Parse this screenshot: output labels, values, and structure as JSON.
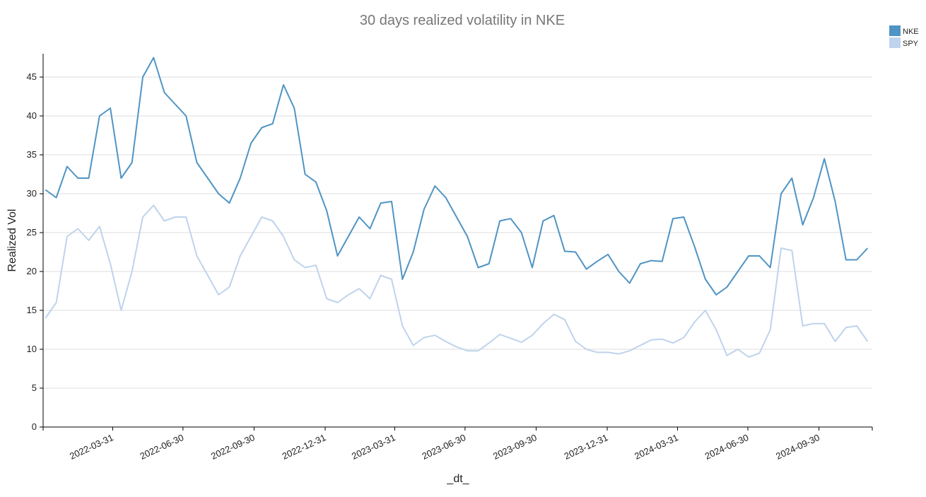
{
  "chart_data": {
    "type": "line",
    "title": "30 days realized volatility in NKE",
    "x_label": "_dt_",
    "y_label": "Realized Vol",
    "x": [
      "2022-01-03",
      "2022-01-17",
      "2022-01-31",
      "2022-02-14",
      "2022-02-28",
      "2022-03-14",
      "2022-03-28",
      "2022-04-11",
      "2022-04-25",
      "2022-05-09",
      "2022-05-23",
      "2022-06-06",
      "2022-06-20",
      "2022-07-04",
      "2022-07-18",
      "2022-08-01",
      "2022-08-15",
      "2022-08-29",
      "2022-09-12",
      "2022-09-26",
      "2022-10-10",
      "2022-10-24",
      "2022-11-07",
      "2022-11-21",
      "2022-12-05",
      "2022-12-19",
      "2023-01-02",
      "2023-01-16",
      "2023-01-30",
      "2023-02-13",
      "2023-02-27",
      "2023-03-13",
      "2023-03-27",
      "2023-04-10",
      "2023-04-24",
      "2023-05-08",
      "2023-05-22",
      "2023-06-05",
      "2023-06-19",
      "2023-07-03",
      "2023-07-17",
      "2023-07-31",
      "2023-08-14",
      "2023-08-28",
      "2023-09-11",
      "2023-09-25",
      "2023-10-09",
      "2023-10-23",
      "2023-11-06",
      "2023-11-20",
      "2023-12-04",
      "2023-12-18",
      "2024-01-01",
      "2024-01-15",
      "2024-01-29",
      "2024-02-12",
      "2024-02-26",
      "2024-03-11",
      "2024-03-25",
      "2024-04-08",
      "2024-04-22",
      "2024-05-06",
      "2024-05-20",
      "2024-06-03",
      "2024-06-17",
      "2024-07-01",
      "2024-07-15",
      "2024-07-29",
      "2024-08-12",
      "2024-08-26",
      "2024-09-09",
      "2024-09-23",
      "2024-10-07",
      "2024-10-21",
      "2024-11-04",
      "2024-11-18",
      "2024-12-02"
    ],
    "series": [
      {
        "name": "NKE",
        "color": "#4f94c4",
        "values": [
          30.5,
          29.5,
          33.5,
          32,
          32,
          40,
          41,
          32,
          34,
          45,
          47.5,
          43,
          41.5,
          40,
          34,
          32,
          30,
          28.8,
          32,
          36.5,
          38.5,
          39,
          44,
          41,
          32.5,
          31.5,
          27.8,
          22,
          24.5,
          27,
          25.5,
          28.8,
          29,
          19,
          22.5,
          28,
          31,
          29.5,
          27,
          24.5,
          20.5,
          21,
          26.5,
          26.8,
          25,
          20.5,
          26.5,
          27.2,
          22.6,
          22.5,
          20.3,
          21.3,
          22.2,
          20,
          18.5,
          21,
          21.4,
          21.3,
          26.8,
          27,
          23.2,
          19,
          17,
          18,
          20,
          22,
          22,
          20.5,
          30,
          32,
          26,
          29.5,
          34.5,
          29,
          21.5,
          21.5,
          23
        ]
      },
      {
        "name": "SPY",
        "color": "#bfd3ec",
        "values": [
          14,
          16,
          24.5,
          25.5,
          24,
          25.8,
          21,
          15,
          20,
          27,
          28.5,
          26.5,
          27,
          27,
          22,
          19.5,
          17,
          18,
          22,
          24.5,
          27,
          26.5,
          24.5,
          21.5,
          20.5,
          20.8,
          16.5,
          16,
          17,
          17.8,
          16.5,
          19.5,
          19,
          13,
          10.5,
          11.5,
          11.8,
          11,
          10.3,
          9.8,
          9.8,
          10.8,
          11.9,
          11.4,
          10.9,
          11.8,
          13.3,
          14.5,
          13.8,
          11,
          10,
          9.6,
          9.6,
          9.4,
          9.8,
          10.5,
          11.2,
          11.3,
          10.8,
          11.5,
          13.5,
          15,
          12.5,
          9.2,
          10,
          9,
          9.5,
          12.5,
          23,
          22.7,
          13,
          13.3,
          13.3,
          11,
          12.8,
          13,
          11
        ]
      }
    ],
    "xlim": [
      "2021-12-31",
      "2024-12-08"
    ],
    "xticks": [
      "2022-03-31",
      "2022-06-30",
      "2022-09-30",
      "2022-12-31",
      "2023-03-31",
      "2023-06-30",
      "2023-09-30",
      "2023-12-31",
      "2024-03-31",
      "2024-06-30",
      "2024-09-30"
    ],
    "ylim": [
      0,
      48
    ],
    "yticks": [
      0,
      5,
      10,
      15,
      20,
      25,
      30,
      35,
      40,
      45
    ],
    "grid": true,
    "legend": "top right"
  }
}
